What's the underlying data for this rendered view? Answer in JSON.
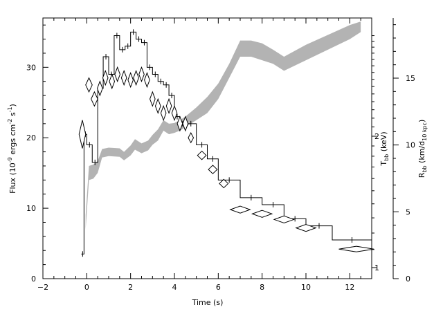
{
  "chart_data": {
    "type": "line",
    "title": "",
    "xlabel": "Time (s)",
    "xlim": [
      -2,
      13
    ],
    "x_ticks": [
      -2,
      0,
      2,
      4,
      6,
      8,
      10,
      12
    ],
    "y_left": {
      "label": "Flux (10",
      "label_full_parts": [
        "Flux (10",
        "-9",
        " ergs cm",
        "-2",
        " s",
        "-1",
        ")"
      ],
      "lim": [
        0,
        37
      ],
      "ticks": [
        0,
        10,
        20,
        30
      ]
    },
    "y_right_inner": {
      "label_main": "T",
      "label_sub": "bb",
      "label_tail": " (keV)",
      "scale": "log",
      "ticks": [
        1,
        2
      ],
      "tick_labels": [
        "1",
        "2"
      ]
    },
    "y_right_outer": {
      "label_main": "R",
      "label_sub": "bb",
      "label_tail_a": " (km/d",
      "label_sub2": "10 kpc",
      "label_tail_b": ")",
      "lim": [
        0,
        19.5
      ],
      "ticks": [
        0,
        5,
        10,
        15
      ]
    },
    "series": [
      {
        "name": "Flux",
        "style": "histogram",
        "color": "#000000",
        "bins": [
          [
            -0.25,
            -0.125,
            3.5
          ],
          [
            -0.125,
            0,
            20.5
          ],
          [
            0,
            0.25,
            19
          ],
          [
            0.25,
            0.5,
            16.5
          ],
          [
            0.5,
            0.75,
            27
          ],
          [
            0.75,
            1.0,
            31.5
          ],
          [
            1.0,
            1.25,
            29
          ],
          [
            1.25,
            1.5,
            34.5
          ],
          [
            1.5,
            1.75,
            32.5
          ],
          [
            1.75,
            2.0,
            33
          ],
          [
            2.0,
            2.25,
            35
          ],
          [
            2.25,
            2.5,
            34
          ],
          [
            2.5,
            2.75,
            33.5
          ],
          [
            2.75,
            3.0,
            30
          ],
          [
            3.0,
            3.25,
            29
          ],
          [
            3.25,
            3.5,
            28
          ],
          [
            3.5,
            3.75,
            27.5
          ],
          [
            3.75,
            4.0,
            26
          ],
          [
            4.0,
            4.25,
            23
          ],
          [
            4.25,
            4.5,
            22
          ],
          [
            4.5,
            5.0,
            22
          ],
          [
            5.0,
            5.5,
            19
          ],
          [
            5.5,
            6.0,
            17
          ],
          [
            6.0,
            7.0,
            14
          ],
          [
            7.0,
            8.0,
            11.5
          ],
          [
            8.0,
            9.0,
            10.5
          ],
          [
            9.0,
            10.0,
            8.5
          ],
          [
            10.0,
            11.2,
            7.5
          ],
          [
            11.2,
            13.0,
            5.5
          ]
        ]
      },
      {
        "name": "T_bb",
        "style": "diamond",
        "color": "#000000",
        "points": [
          [
            -0.2,
            20.5,
            0.15,
            2.0
          ],
          [
            0.1,
            27.5,
            0.15,
            1.0
          ],
          [
            0.35,
            25.5,
            0.15,
            1.0
          ],
          [
            0.6,
            27,
            0.12,
            1.0
          ],
          [
            0.85,
            28.5,
            0.12,
            1.0
          ],
          [
            1.15,
            28,
            0.12,
            1.0
          ],
          [
            1.4,
            29,
            0.12,
            1.0
          ],
          [
            1.7,
            28.5,
            0.12,
            1.0
          ],
          [
            2.0,
            28.2,
            0.12,
            1.0
          ],
          [
            2.25,
            28.5,
            0.12,
            1.0
          ],
          [
            2.5,
            29,
            0.12,
            1.0
          ],
          [
            2.75,
            28.2,
            0.12,
            1.0
          ],
          [
            3.0,
            25.5,
            0.12,
            1.0
          ],
          [
            3.25,
            24.5,
            0.12,
            1.0
          ],
          [
            3.5,
            23.5,
            0.12,
            1.0
          ],
          [
            3.75,
            24.5,
            0.12,
            1.0
          ],
          [
            4.0,
            23.5,
            0.12,
            1.0
          ],
          [
            4.25,
            22,
            0.12,
            1.0
          ],
          [
            4.5,
            22,
            0.12,
            1.0
          ],
          [
            4.75,
            20,
            0.12,
            0.7
          ],
          [
            5.25,
            17.5,
            0.2,
            0.6
          ],
          [
            5.75,
            15.5,
            0.2,
            0.6
          ],
          [
            6.25,
            13.5,
            0.2,
            0.6
          ],
          [
            7.0,
            9.8,
            0.45,
            0.5
          ],
          [
            8.0,
            9.2,
            0.45,
            0.5
          ],
          [
            9.0,
            8.4,
            0.45,
            0.5
          ],
          [
            10.0,
            7.2,
            0.45,
            0.5
          ],
          [
            12.3,
            4.2,
            0.8,
            0.4
          ]
        ]
      },
      {
        "name": "R_bb",
        "style": "band",
        "color": "#b3b3b3",
        "lower": [
          [
            -0.05,
            7
          ],
          [
            0.1,
            14
          ],
          [
            0.3,
            14.2
          ],
          [
            0.5,
            15
          ],
          [
            0.7,
            17.2
          ],
          [
            1.0,
            17.4
          ],
          [
            1.5,
            17.3
          ],
          [
            1.7,
            16.8
          ],
          [
            2.0,
            17.5
          ],
          [
            2.2,
            18.3
          ],
          [
            2.5,
            17.8
          ],
          [
            2.8,
            18.2
          ],
          [
            3.0,
            19.0
          ],
          [
            3.25,
            19.6
          ],
          [
            3.5,
            21
          ],
          [
            3.75,
            20.5
          ],
          [
            4.0,
            20.7
          ],
          [
            4.25,
            21.0
          ],
          [
            4.5,
            21.5
          ],
          [
            5.0,
            22.5
          ],
          [
            5.5,
            23.5
          ],
          [
            6.0,
            25.5
          ],
          [
            6.5,
            28.5
          ],
          [
            7.0,
            31.5
          ],
          [
            7.5,
            31.5
          ],
          [
            8.0,
            31.0
          ],
          [
            8.5,
            30.5
          ],
          [
            9.0,
            29.5
          ],
          [
            10.0,
            31.0
          ],
          [
            11.0,
            32.5
          ],
          [
            12.0,
            34.0
          ],
          [
            12.5,
            35.0
          ]
        ],
        "upper": [
          [
            -0.05,
            9
          ],
          [
            0.1,
            16
          ],
          [
            0.3,
            16.2
          ],
          [
            0.5,
            16.7
          ],
          [
            0.7,
            18.4
          ],
          [
            1.0,
            18.6
          ],
          [
            1.5,
            18.5
          ],
          [
            1.7,
            18.0
          ],
          [
            2.0,
            18.9
          ],
          [
            2.2,
            19.8
          ],
          [
            2.5,
            19.2
          ],
          [
            2.8,
            19.6
          ],
          [
            3.0,
            20.4
          ],
          [
            3.25,
            21.2
          ],
          [
            3.5,
            22.5
          ],
          [
            3.75,
            22.0
          ],
          [
            4.0,
            22.1
          ],
          [
            4.25,
            22.5
          ],
          [
            4.5,
            23.0
          ],
          [
            5.0,
            24.3
          ],
          [
            5.5,
            25.8
          ],
          [
            6.0,
            27.7
          ],
          [
            6.5,
            30.5
          ],
          [
            7.0,
            33.8
          ],
          [
            7.5,
            33.8
          ],
          [
            8.0,
            33.4
          ],
          [
            8.5,
            32.5
          ],
          [
            9.0,
            31.5
          ],
          [
            10.0,
            33.2
          ],
          [
            11.0,
            34.6
          ],
          [
            12.0,
            36.0
          ],
          [
            12.5,
            36.5
          ]
        ]
      }
    ],
    "grid": false,
    "legend": "none"
  }
}
